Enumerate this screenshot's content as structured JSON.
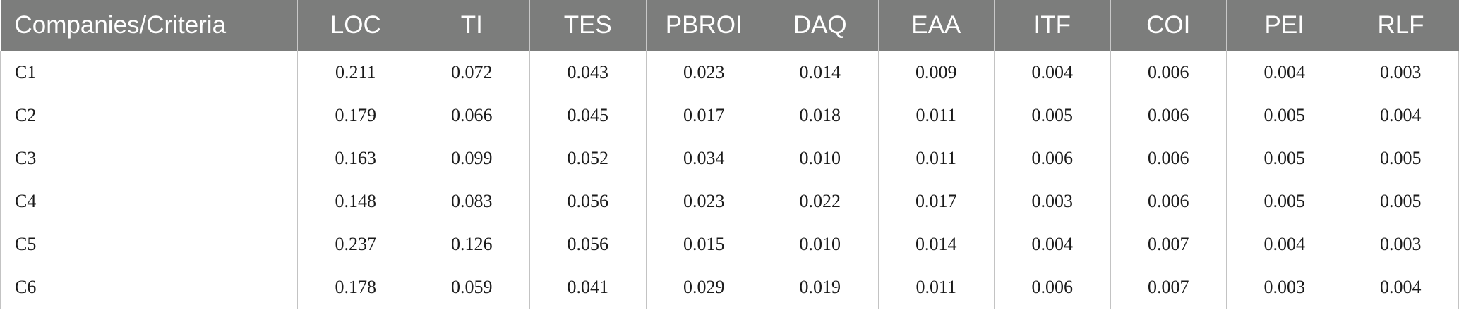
{
  "table": {
    "headers": [
      "Companies/Criteria",
      "LOC",
      "TI",
      "TES",
      "PBROI",
      "DAQ",
      "EAA",
      "ITF",
      "COI",
      "PEI",
      "RLF"
    ],
    "rows": [
      [
        "C1",
        "0.211",
        "0.072",
        "0.043",
        "0.023",
        "0.014",
        "0.009",
        "0.004",
        "0.006",
        "0.004",
        "0.003"
      ],
      [
        "C2",
        "0.179",
        "0.066",
        "0.045",
        "0.017",
        "0.018",
        "0.011",
        "0.005",
        "0.006",
        "0.005",
        "0.004"
      ],
      [
        "C3",
        "0.163",
        "0.099",
        "0.052",
        "0.034",
        "0.010",
        "0.011",
        "0.006",
        "0.006",
        "0.005",
        "0.005"
      ],
      [
        "C4",
        "0.148",
        "0.083",
        "0.056",
        "0.023",
        "0.022",
        "0.017",
        "0.003",
        "0.006",
        "0.005",
        "0.005"
      ],
      [
        "C5",
        "0.237",
        "0.126",
        "0.056",
        "0.015",
        "0.010",
        "0.014",
        "0.004",
        "0.007",
        "0.004",
        "0.003"
      ],
      [
        "C6",
        "0.178",
        "0.059",
        "0.041",
        "0.029",
        "0.019",
        "0.011",
        "0.006",
        "0.007",
        "0.003",
        "0.004"
      ]
    ]
  },
  "colors": {
    "header_background": "#7c7d7c",
    "header_text": "#ffffff",
    "grid_lines": "#c3c3c3"
  }
}
